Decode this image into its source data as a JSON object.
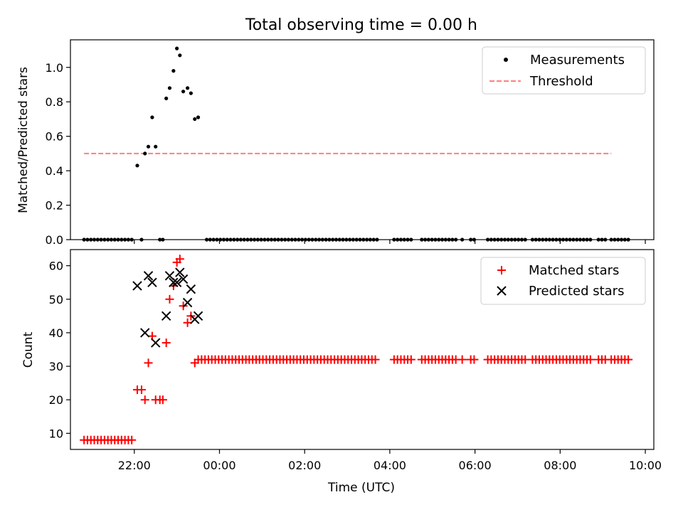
{
  "chart_data": [
    {
      "type": "scatter",
      "title": "Total observing time = 0.00 h",
      "xlabel": "",
      "ylabel": "Matched/Predicted stars",
      "x_unit": "hours (UTC, >24 = next day)",
      "xlim": [
        20.5,
        34.2
      ],
      "ylim": [
        0.0,
        1.16
      ],
      "yticks": [
        "0.0",
        "0.2",
        "0.4",
        "0.6",
        "0.8",
        "1.0"
      ],
      "ytick_values": [
        0.0,
        0.2,
        0.4,
        0.6,
        0.8,
        1.0
      ],
      "grid": false,
      "legend_position": "top-right",
      "series": [
        {
          "name": "Measurements",
          "marker": "dot",
          "color": "#000000",
          "points": [
            [
              22.07,
              0.43
            ],
            [
              22.25,
              0.5
            ],
            [
              22.33,
              0.54
            ],
            [
              22.42,
              0.71
            ],
            [
              22.5,
              0.54
            ],
            [
              22.75,
              0.82
            ],
            [
              22.83,
              0.88
            ],
            [
              22.92,
              0.98
            ],
            [
              23.0,
              1.11
            ],
            [
              23.07,
              1.07
            ],
            [
              23.15,
              0.86
            ],
            [
              23.25,
              0.88
            ],
            [
              23.33,
              0.85
            ],
            [
              23.42,
              0.7
            ],
            [
              23.5,
              0.71
            ]
          ],
          "zero_points_x": [
            20.82,
            20.9,
            20.98,
            21.06,
            21.14,
            21.22,
            21.3,
            21.38,
            21.46,
            21.54,
            21.62,
            21.7,
            21.78,
            21.86,
            21.94,
            22.17,
            22.6,
            22.67,
            23.7,
            23.78,
            23.86,
            23.94,
            24.02,
            24.1,
            24.18,
            24.26,
            24.34,
            24.42,
            24.5,
            24.58,
            24.66,
            24.74,
            24.82,
            24.9,
            24.98,
            25.06,
            25.14,
            25.22,
            25.3,
            25.38,
            25.46,
            25.54,
            25.62,
            25.7,
            25.78,
            25.86,
            25.94,
            26.02,
            26.1,
            26.18,
            26.26,
            26.34,
            26.42,
            26.5,
            26.58,
            26.66,
            26.74,
            26.82,
            26.9,
            26.98,
            27.06,
            27.14,
            27.22,
            27.3,
            27.38,
            27.46,
            27.54,
            27.62,
            27.7,
            28.1,
            28.18,
            28.26,
            28.34,
            28.42,
            28.5,
            28.75,
            28.83,
            28.91,
            28.99,
            29.07,
            29.15,
            29.23,
            29.31,
            29.39,
            29.47,
            29.55,
            29.7,
            29.9,
            29.98,
            30.3,
            30.38,
            30.46,
            30.54,
            30.62,
            30.7,
            30.78,
            30.86,
            30.94,
            31.02,
            31.1,
            31.18,
            31.35,
            31.43,
            31.51,
            31.59,
            31.67,
            31.75,
            31.83,
            31.91,
            31.99,
            32.07,
            32.15,
            32.23,
            32.31,
            32.39,
            32.47,
            32.55,
            32.63,
            32.71,
            32.9,
            32.98,
            33.06,
            33.2,
            33.28,
            33.36,
            33.44,
            33.52,
            33.6
          ]
        },
        {
          "name": "Threshold",
          "style": "dashed",
          "color": "#ff7f7f",
          "x": [
            20.82,
            33.2
          ],
          "y": [
            0.5,
            0.5
          ]
        }
      ]
    },
    {
      "type": "scatter",
      "title": "",
      "xlabel": "Time (UTC)",
      "ylabel": "Count",
      "x_unit": "hours (UTC, >24 = next day)",
      "xlim": [
        20.5,
        34.2
      ],
      "ylim": [
        5.2,
        64.8
      ],
      "xticks": [
        "22:00",
        "00:00",
        "02:00",
        "04:00",
        "06:00",
        "08:00",
        "10:00"
      ],
      "xtick_values": [
        22,
        24,
        26,
        28,
        30,
        32,
        34
      ],
      "yticks": [
        "10",
        "20",
        "30",
        "40",
        "50",
        "60"
      ],
      "ytick_values": [
        10,
        20,
        30,
        40,
        50,
        60
      ],
      "grid": false,
      "legend_position": "top-right",
      "series": [
        {
          "name": "Matched stars",
          "marker": "plus",
          "color": "#ff0000",
          "points": [
            [
              20.82,
              8
            ],
            [
              20.9,
              8
            ],
            [
              20.98,
              8
            ],
            [
              21.06,
              8
            ],
            [
              21.14,
              8
            ],
            [
              21.22,
              8
            ],
            [
              21.3,
              8
            ],
            [
              21.38,
              8
            ],
            [
              21.46,
              8
            ],
            [
              21.54,
              8
            ],
            [
              21.62,
              8
            ],
            [
              21.7,
              8
            ],
            [
              21.78,
              8
            ],
            [
              21.86,
              8
            ],
            [
              21.94,
              8
            ],
            [
              22.07,
              23
            ],
            [
              22.17,
              23
            ],
            [
              22.25,
              20
            ],
            [
              22.33,
              31
            ],
            [
              22.42,
              39
            ],
            [
              22.5,
              20
            ],
            [
              22.6,
              20
            ],
            [
              22.67,
              20
            ],
            [
              22.75,
              37
            ],
            [
              22.83,
              50
            ],
            [
              22.92,
              54
            ],
            [
              23.0,
              61
            ],
            [
              23.07,
              62
            ],
            [
              23.15,
              48
            ],
            [
              23.25,
              43
            ],
            [
              23.33,
              45
            ],
            [
              23.42,
              31
            ],
            [
              23.5,
              32
            ],
            [
              23.58,
              32
            ],
            [
              23.66,
              32
            ],
            [
              23.74,
              32
            ],
            [
              23.82,
              32
            ],
            [
              23.9,
              32
            ],
            [
              23.98,
              32
            ],
            [
              24.06,
              32
            ],
            [
              24.14,
              32
            ],
            [
              24.22,
              32
            ],
            [
              24.3,
              32
            ],
            [
              24.38,
              32
            ],
            [
              24.46,
              32
            ],
            [
              24.54,
              32
            ],
            [
              24.62,
              32
            ],
            [
              24.7,
              32
            ],
            [
              24.78,
              32
            ],
            [
              24.86,
              32
            ],
            [
              24.94,
              32
            ],
            [
              25.02,
              32
            ],
            [
              25.1,
              32
            ],
            [
              25.18,
              32
            ],
            [
              25.26,
              32
            ],
            [
              25.34,
              32
            ],
            [
              25.42,
              32
            ],
            [
              25.5,
              32
            ],
            [
              25.58,
              32
            ],
            [
              25.66,
              32
            ],
            [
              25.74,
              32
            ],
            [
              25.82,
              32
            ],
            [
              25.9,
              32
            ],
            [
              25.98,
              32
            ],
            [
              26.06,
              32
            ],
            [
              26.14,
              32
            ],
            [
              26.22,
              32
            ],
            [
              26.3,
              32
            ],
            [
              26.38,
              32
            ],
            [
              26.46,
              32
            ],
            [
              26.54,
              32
            ],
            [
              26.62,
              32
            ],
            [
              26.7,
              32
            ],
            [
              26.78,
              32
            ],
            [
              26.86,
              32
            ],
            [
              26.94,
              32
            ],
            [
              27.02,
              32
            ],
            [
              27.1,
              32
            ],
            [
              27.18,
              32
            ],
            [
              27.26,
              32
            ],
            [
              27.34,
              32
            ],
            [
              27.42,
              32
            ],
            [
              27.5,
              32
            ],
            [
              27.58,
              32
            ],
            [
              27.66,
              32
            ],
            [
              28.1,
              32
            ],
            [
              28.18,
              32
            ],
            [
              28.26,
              32
            ],
            [
              28.34,
              32
            ],
            [
              28.42,
              32
            ],
            [
              28.5,
              32
            ],
            [
              28.75,
              32
            ],
            [
              28.83,
              32
            ],
            [
              28.91,
              32
            ],
            [
              28.99,
              32
            ],
            [
              29.07,
              32
            ],
            [
              29.15,
              32
            ],
            [
              29.23,
              32
            ],
            [
              29.31,
              32
            ],
            [
              29.39,
              32
            ],
            [
              29.47,
              32
            ],
            [
              29.55,
              32
            ],
            [
              29.7,
              32
            ],
            [
              29.9,
              32
            ],
            [
              29.98,
              32
            ],
            [
              30.3,
              32
            ],
            [
              30.38,
              32
            ],
            [
              30.46,
              32
            ],
            [
              30.54,
              32
            ],
            [
              30.62,
              32
            ],
            [
              30.7,
              32
            ],
            [
              30.78,
              32
            ],
            [
              30.86,
              32
            ],
            [
              30.94,
              32
            ],
            [
              31.02,
              32
            ],
            [
              31.1,
              32
            ],
            [
              31.18,
              32
            ],
            [
              31.35,
              32
            ],
            [
              31.43,
              32
            ],
            [
              31.51,
              32
            ],
            [
              31.59,
              32
            ],
            [
              31.67,
              32
            ],
            [
              31.75,
              32
            ],
            [
              31.83,
              32
            ],
            [
              31.91,
              32
            ],
            [
              31.99,
              32
            ],
            [
              32.07,
              32
            ],
            [
              32.15,
              32
            ],
            [
              32.23,
              32
            ],
            [
              32.31,
              32
            ],
            [
              32.39,
              32
            ],
            [
              32.47,
              32
            ],
            [
              32.55,
              32
            ],
            [
              32.63,
              32
            ],
            [
              32.71,
              32
            ],
            [
              32.9,
              32
            ],
            [
              32.98,
              32
            ],
            [
              33.06,
              32
            ],
            [
              33.2,
              32
            ],
            [
              33.28,
              32
            ],
            [
              33.36,
              32
            ],
            [
              33.44,
              32
            ],
            [
              33.52,
              32
            ],
            [
              33.6,
              32
            ]
          ]
        },
        {
          "name": "Predicted stars",
          "marker": "x",
          "color": "#000000",
          "points": [
            [
              22.07,
              54
            ],
            [
              22.25,
              40
            ],
            [
              22.33,
              57
            ],
            [
              22.42,
              55
            ],
            [
              22.5,
              37
            ],
            [
              22.75,
              45
            ],
            [
              22.83,
              57
            ],
            [
              22.92,
              55
            ],
            [
              23.0,
              55
            ],
            [
              23.07,
              58
            ],
            [
              23.15,
              56
            ],
            [
              23.25,
              49
            ],
            [
              23.33,
              53
            ],
            [
              23.42,
              44
            ],
            [
              23.5,
              45
            ]
          ]
        }
      ]
    }
  ]
}
